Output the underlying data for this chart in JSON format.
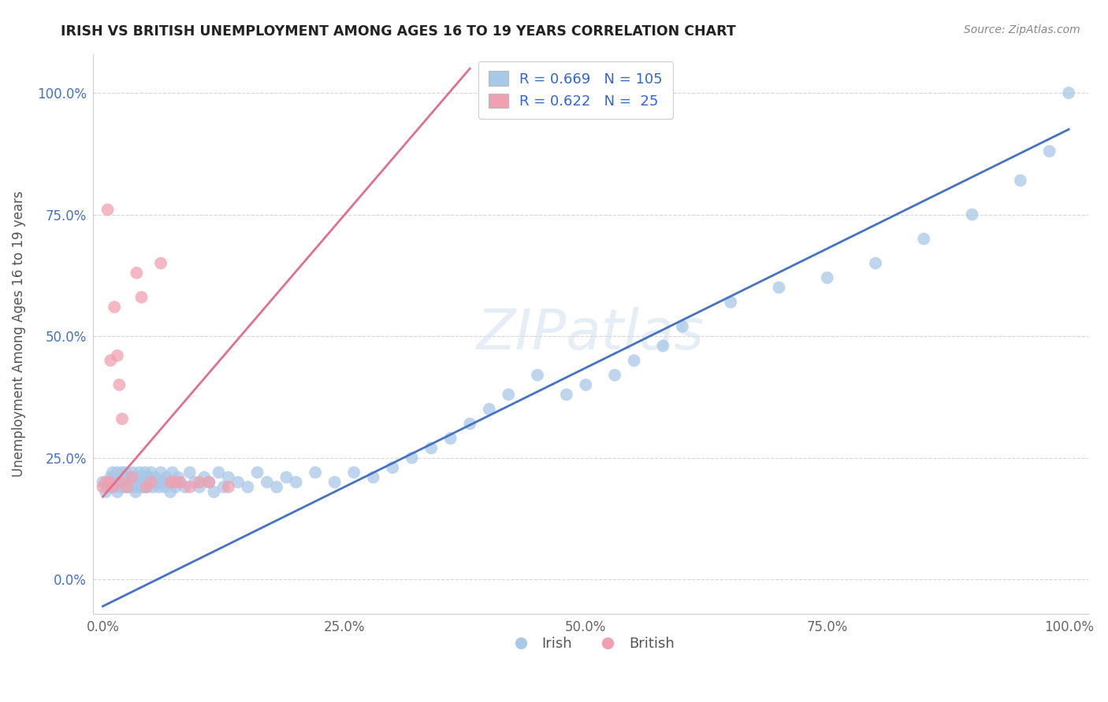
{
  "title": "IRISH VS BRITISH UNEMPLOYMENT AMONG AGES 16 TO 19 YEARS CORRELATION CHART",
  "source": "Source: ZipAtlas.com",
  "ylabel": "Unemployment Among Ages 16 to 19 years",
  "xlim": [
    -0.01,
    1.02
  ],
  "ylim": [
    -0.07,
    1.08
  ],
  "irish_R": 0.669,
  "irish_N": 105,
  "british_R": 0.622,
  "british_N": 25,
  "irish_color": "#a8c8e8",
  "british_color": "#f0a0b0",
  "irish_line_color": "#4472c4",
  "british_line_color": "#e07090",
  "legend_text_color": "#3366cc",
  "watermark": "ZIPatlas",
  "background_color": "#ffffff",
  "grid_color": "#cccccc",
  "blue_line_x0": 0.0,
  "blue_line_y0": -0.055,
  "blue_line_x1": 1.0,
  "blue_line_y1": 0.925,
  "pink_line_x0": 0.0,
  "pink_line_y0": 0.17,
  "pink_line_x1": 0.38,
  "pink_line_y1": 1.05,
  "irish_x": [
    0.0,
    0.003,
    0.005,
    0.007,
    0.008,
    0.009,
    0.01,
    0.01,
    0.012,
    0.012,
    0.013,
    0.015,
    0.015,
    0.016,
    0.017,
    0.018,
    0.019,
    0.02,
    0.02,
    0.021,
    0.022,
    0.023,
    0.024,
    0.025,
    0.026,
    0.027,
    0.028,
    0.03,
    0.03,
    0.031,
    0.032,
    0.033,
    0.034,
    0.035,
    0.036,
    0.037,
    0.038,
    0.04,
    0.04,
    0.042,
    0.043,
    0.044,
    0.045,
    0.046,
    0.048,
    0.05,
    0.05,
    0.052,
    0.054,
    0.056,
    0.058,
    0.06,
    0.062,
    0.064,
    0.066,
    0.068,
    0.07,
    0.072,
    0.075,
    0.078,
    0.08,
    0.085,
    0.09,
    0.095,
    0.1,
    0.105,
    0.11,
    0.115,
    0.12,
    0.125,
    0.13,
    0.14,
    0.15,
    0.16,
    0.17,
    0.18,
    0.19,
    0.2,
    0.22,
    0.24,
    0.26,
    0.28,
    0.3,
    0.32,
    0.34,
    0.36,
    0.38,
    0.4,
    0.42,
    0.45,
    0.48,
    0.5,
    0.53,
    0.55,
    0.58,
    0.6,
    0.65,
    0.7,
    0.75,
    0.8,
    0.85,
    0.9,
    0.95,
    0.98,
    1.0
  ],
  "irish_y": [
    0.2,
    0.18,
    0.19,
    0.2,
    0.21,
    0.19,
    0.2,
    0.22,
    0.19,
    0.21,
    0.2,
    0.18,
    0.22,
    0.19,
    0.21,
    0.2,
    0.19,
    0.22,
    0.2,
    0.21,
    0.19,
    0.2,
    0.22,
    0.19,
    0.21,
    0.2,
    0.19,
    0.21,
    0.2,
    0.22,
    0.19,
    0.2,
    0.18,
    0.21,
    0.19,
    0.2,
    0.22,
    0.19,
    0.21,
    0.2,
    0.19,
    0.22,
    0.2,
    0.19,
    0.21,
    0.2,
    0.22,
    0.19,
    0.21,
    0.2,
    0.19,
    0.22,
    0.2,
    0.19,
    0.21,
    0.2,
    0.18,
    0.22,
    0.19,
    0.21,
    0.2,
    0.19,
    0.22,
    0.2,
    0.19,
    0.21,
    0.2,
    0.18,
    0.22,
    0.19,
    0.21,
    0.2,
    0.19,
    0.22,
    0.2,
    0.19,
    0.21,
    0.2,
    0.22,
    0.2,
    0.22,
    0.21,
    0.23,
    0.25,
    0.27,
    0.29,
    0.32,
    0.35,
    0.38,
    0.42,
    0.38,
    0.4,
    0.42,
    0.45,
    0.48,
    0.52,
    0.57,
    0.6,
    0.62,
    0.65,
    0.7,
    0.75,
    0.82,
    0.88,
    1.0
  ],
  "british_x": [
    0.0,
    0.003,
    0.005,
    0.007,
    0.008,
    0.01,
    0.012,
    0.015,
    0.017,
    0.018,
    0.02,
    0.025,
    0.03,
    0.035,
    0.04,
    0.045,
    0.05,
    0.06,
    0.07,
    0.075,
    0.08,
    0.09,
    0.1,
    0.11,
    0.13
  ],
  "british_y": [
    0.19,
    0.2,
    0.76,
    0.2,
    0.45,
    0.19,
    0.56,
    0.46,
    0.4,
    0.2,
    0.33,
    0.19,
    0.21,
    0.63,
    0.58,
    0.19,
    0.2,
    0.65,
    0.2,
    0.2,
    0.2,
    0.19,
    0.2,
    0.2,
    0.19
  ]
}
